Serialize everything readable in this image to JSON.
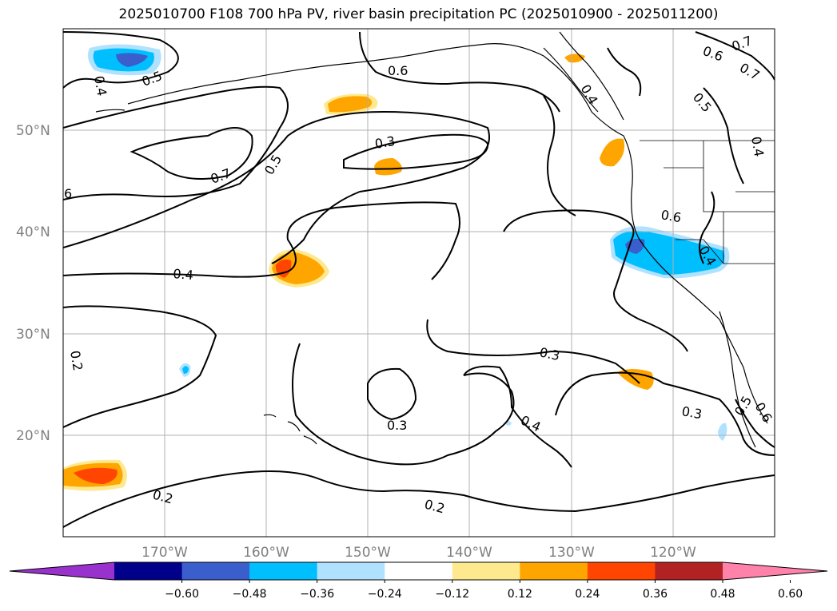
{
  "title": "2025010700 F108 700 hPa PV, river basin precipitation PC (2025010900 - 2025011200)",
  "map": {
    "lat_ticks": [
      {
        "value": 50,
        "label": "50°N"
      },
      {
        "value": 40,
        "label": "40°N"
      },
      {
        "value": 30,
        "label": "30°N"
      },
      {
        "value": 20,
        "label": "20°N"
      }
    ],
    "lon_ticks": [
      {
        "value": -170,
        "label": "170°W"
      },
      {
        "value": -160,
        "label": "160°W"
      },
      {
        "value": -150,
        "label": "150°W"
      },
      {
        "value": -140,
        "label": "140°W"
      },
      {
        "value": -130,
        "label": "130°W"
      },
      {
        "value": -120,
        "label": "120°W"
      }
    ],
    "extent": {
      "lon_min": -180,
      "lon_max": -110,
      "lat_min": 10,
      "lat_max": 60
    },
    "grid": true,
    "contour_labels": [
      "0.4",
      "0.5",
      "0.6",
      "0.7",
      "0.6",
      "0.5",
      "0.4",
      "0.3",
      "0.7",
      "0.5",
      "6",
      "0.6",
      "0.4",
      "0.4",
      "0.3",
      "0.2",
      "0.3",
      "0.4",
      "0.3",
      "0.5",
      "0.6",
      "0.2",
      "0.2",
      "0.4",
      "0.7"
    ]
  },
  "colorbar": {
    "ticks": [
      "−0.60",
      "−0.48",
      "−0.36",
      "−0.24",
      "−0.12",
      "0.12",
      "0.24",
      "0.36",
      "0.48",
      "0.60"
    ],
    "colors": [
      "#9932CC",
      "#00008B",
      "#3A5FCD",
      "#00BFFF",
      "#B0E2FF",
      "#FFFFFF",
      "#FFE98F",
      "#FFA500",
      "#FF4500",
      "#B22222",
      "#FF82AB"
    ]
  }
}
